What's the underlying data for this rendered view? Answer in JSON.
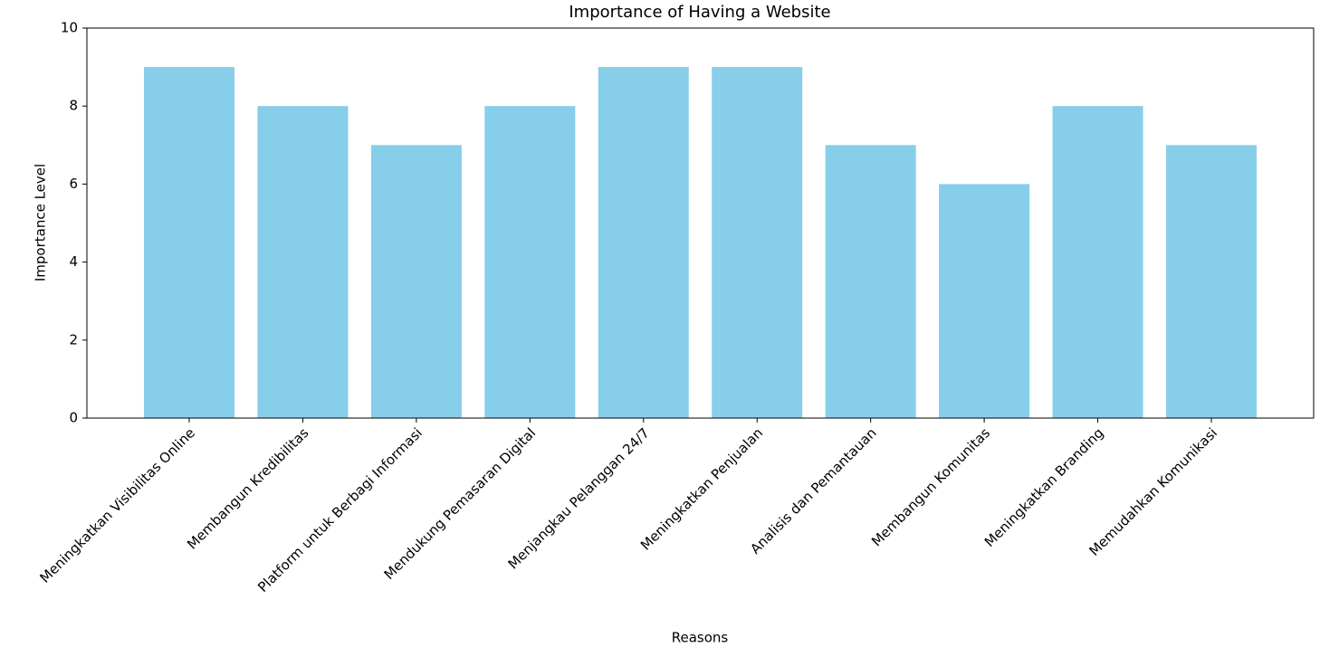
{
  "chart_data": {
    "type": "bar",
    "title": "Importance of Having a Website",
    "x_label": "Reasons",
    "y_label": "Importance Level",
    "categories": [
      "Meningkatkan Visibilitas Online",
      "Membangun Kredibilitas",
      "Platform untuk Berbagi Informasi",
      "Mendukung Pemasaran Digital",
      "Menjangkau Pelanggan 24/7",
      "Meningkatkan Penjualan",
      "Analisis dan Pemantauan",
      "Membangun Komunitas",
      "Meningkatkan Branding",
      "Memudahkan Komunikasi"
    ],
    "values": [
      9,
      8,
      7,
      8,
      9,
      9,
      7,
      6,
      8,
      7
    ],
    "color": "#87ceeb",
    "ylim": [
      0,
      10
    ],
    "yticks": [
      0,
      2,
      4,
      6,
      8,
      10
    ],
    "grid": false
  }
}
